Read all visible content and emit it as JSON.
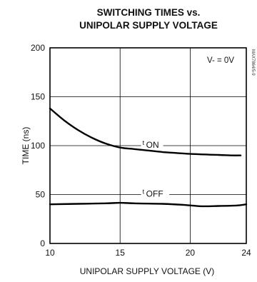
{
  "chart_data": {
    "type": "line",
    "title": [
      "SWITCHING TIMES vs.",
      "UNIPOLAR SUPPLY VOLTAGE"
    ],
    "xlabel": "UNIPOLAR SUPPLY VOLTAGE (V)",
    "ylabel": "TIME (ns)",
    "xlim": [
      10,
      24
    ],
    "ylim": [
      0,
      200
    ],
    "xticks": [
      10,
      15,
      20,
      24
    ],
    "yticks": [
      0,
      50,
      100,
      150,
      200
    ],
    "grid": true,
    "annotation": "V- = 0V",
    "part_number": "MAX7864/5-9",
    "series": [
      {
        "name": "ON",
        "label_prefix": "t",
        "x": [
          10,
          11,
          12,
          13,
          14,
          15,
          16,
          17,
          18,
          19,
          20,
          21,
          22,
          23,
          23.6
        ],
        "values": [
          138,
          126,
          116,
          108,
          102,
          98,
          96.5,
          95,
          93.5,
          92.5,
          91.5,
          91,
          90.5,
          90,
          90
        ]
      },
      {
        "name": "OFF",
        "label_prefix": "t",
        "x": [
          10,
          12,
          14,
          15,
          16,
          18,
          19.5,
          20.8,
          22,
          23,
          23.5,
          24
        ],
        "values": [
          40,
          40.5,
          41,
          41.5,
          41,
          40.5,
          39.5,
          38,
          38.3,
          38.6,
          39,
          40
        ]
      }
    ]
  }
}
